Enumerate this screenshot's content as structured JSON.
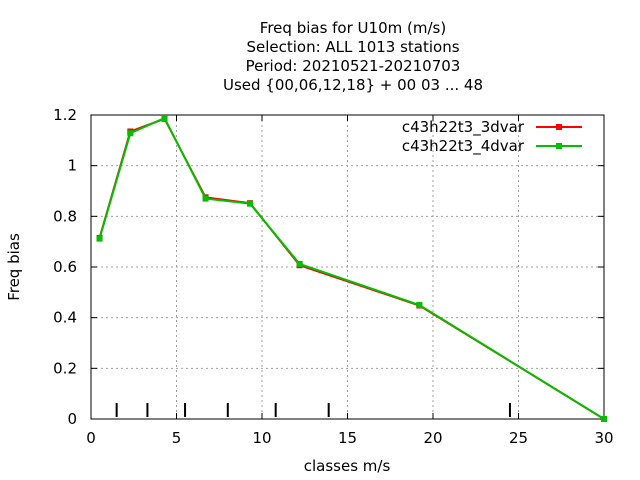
{
  "chart_data": {
    "type": "line",
    "title_lines": [
      "Freq bias  for U10m (m/s)",
      "Selection: ALL   1013 stations",
      "Period: 20210521-20210703",
      "Used {00,06,12,18} + 00 03 ... 48"
    ],
    "xlabel": "classes m/s",
    "ylabel": "Freq bias",
    "xlim": [
      0,
      30
    ],
    "ylim": [
      0,
      1.2
    ],
    "xticks": [
      0,
      5,
      10,
      15,
      20,
      25,
      30
    ],
    "yticks": [
      0,
      0.2,
      0.4,
      0.6,
      0.8,
      1,
      1.2
    ],
    "ytick_labels": [
      "0",
      "0.2",
      "0.4",
      "0.6",
      "0.8",
      "1",
      "1.2"
    ],
    "class_markers": [
      1.5,
      3.3,
      5.5,
      8.0,
      10.8,
      13.9,
      24.5
    ],
    "grid": true,
    "legend_position": "top-right",
    "series": [
      {
        "name": "c43h22t3_3dvar",
        "color": "#ff0000",
        "x": [
          0.5,
          2.3,
          4.3,
          6.7,
          9.3,
          12.2,
          19.2,
          30.0
        ],
        "y": [
          0.715,
          1.135,
          1.185,
          0.875,
          0.852,
          0.607,
          0.448,
          0.0
        ]
      },
      {
        "name": "c43h22t3_4dvar",
        "color": "#00c000",
        "x": [
          0.5,
          2.3,
          4.3,
          6.7,
          9.3,
          12.2,
          19.2,
          30.0
        ],
        "y": [
          0.712,
          1.128,
          1.188,
          0.87,
          0.85,
          0.612,
          0.45,
          0.0
        ]
      }
    ]
  }
}
